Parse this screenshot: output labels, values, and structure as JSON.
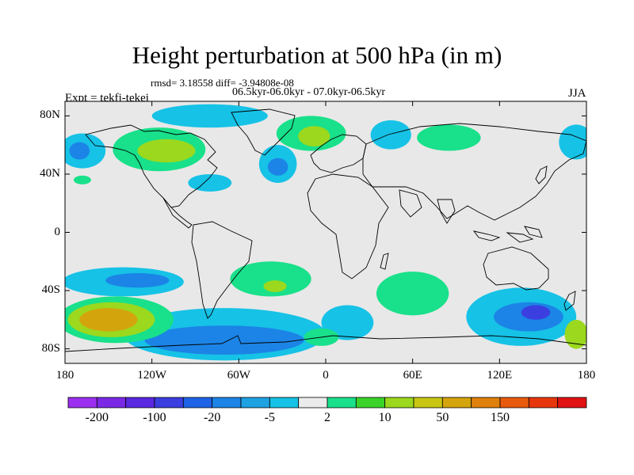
{
  "title": "Height perturbation at 500 hPa (in m)",
  "stats": "rmsd= 3.18558 diff= -3.94808e-08",
  "period": "06.5kyr-06.0kyr - 07.0kyr-06.5kyr",
  "experiment": "Expt = tekfi-tekei",
  "season": "JJA",
  "map": {
    "lat_ticks": [
      {
        "value": 80,
        "label": "80N"
      },
      {
        "value": 40,
        "label": "40N"
      },
      {
        "value": 0,
        "label": "0"
      },
      {
        "value": -40,
        "label": "40S"
      },
      {
        "value": -80,
        "label": "80S"
      }
    ],
    "lon_ticks": [
      {
        "value": -180,
        "label": "180"
      },
      {
        "value": -120,
        "label": "120W"
      },
      {
        "value": -60,
        "label": "60W"
      },
      {
        "value": 0,
        "label": "0"
      },
      {
        "value": 60,
        "label": "60E"
      },
      {
        "value": 120,
        "label": "120E"
      },
      {
        "value": 180,
        "label": "180"
      }
    ],
    "lon_range": [
      -180,
      180
    ],
    "lat_range": [
      -90,
      90
    ],
    "background_color": "#e8e8e8"
  },
  "colorbar": {
    "colors": [
      "#9b2ff0",
      "#7a28e6",
      "#5a28e0",
      "#3b3fe0",
      "#1e63e6",
      "#1c84e6",
      "#1ea2e2",
      "#16c2e6",
      "#ebebeb",
      "#19e08a",
      "#3ad32a",
      "#9bd81e",
      "#c8c612",
      "#d4a40c",
      "#e0800c",
      "#e85a0c",
      "#e8360c",
      "#e01212"
    ],
    "labels": [
      {
        "boundary": 1,
        "text": "-200"
      },
      {
        "boundary": 3,
        "text": "-100"
      },
      {
        "boundary": 5,
        "text": "-20"
      },
      {
        "boundary": 7,
        "text": "-5"
      },
      {
        "boundary": 9,
        "text": "2"
      },
      {
        "boundary": 11,
        "text": "10"
      },
      {
        "boundary": 13,
        "text": "50"
      },
      {
        "boundary": 15,
        "text": "150"
      }
    ]
  },
  "anomaly_regions": [
    {
      "name": "north-pacific-negative",
      "level": "-5",
      "lon": -168,
      "lat": 56,
      "rlon": 16,
      "rlat": 12
    },
    {
      "name": "north-pacific-core",
      "level": "-20",
      "lon": -170,
      "lat": 56,
      "rlon": 7,
      "rlat": 6
    },
    {
      "name": "north-america-positive",
      "level": "2",
      "lon": -115,
      "lat": 57,
      "rlon": 32,
      "rlat": 15
    },
    {
      "name": "north-america-core",
      "level": "10",
      "lon": -110,
      "lat": 56,
      "rlon": 20,
      "rlat": 8
    },
    {
      "name": "arctic-negative",
      "level": "-5",
      "lon": -80,
      "lat": 80,
      "rlon": 40,
      "rlat": 8
    },
    {
      "name": "north-atlantic-negative",
      "level": "-5",
      "lon": -33,
      "lat": 47,
      "rlon": 13,
      "rlat": 13
    },
    {
      "name": "north-atlantic-core",
      "level": "-20",
      "lon": -33,
      "lat": 45,
      "rlon": 7,
      "rlat": 6
    },
    {
      "name": "europe-positive",
      "level": "2",
      "lon": -10,
      "lat": 68,
      "rlon": 24,
      "rlat": 12
    },
    {
      "name": "europe-core",
      "level": "10",
      "lon": -8,
      "lat": 66,
      "rlon": 11,
      "rlat": 7
    },
    {
      "name": "eastern-us-negative",
      "level": "-5",
      "lon": -80,
      "lat": 34,
      "rlon": 15,
      "rlat": 6
    },
    {
      "name": "hawaii-positive",
      "level": "2",
      "lon": -168,
      "lat": 36,
      "rlon": 6,
      "rlat": 3
    },
    {
      "name": "siberia-negative",
      "level": "-5",
      "lon": 45,
      "lat": 67,
      "rlon": 14,
      "rlat": 10
    },
    {
      "name": "central-asia-positive",
      "level": "2",
      "lon": 85,
      "lat": 65,
      "rlon": 22,
      "rlat": 9
    },
    {
      "name": "far-east-negative",
      "level": "-5",
      "lon": 173,
      "lat": 62,
      "rlon": 12,
      "rlat": 12
    },
    {
      "name": "southeast-pacific-negative",
      "level": "-5",
      "lon": -140,
      "lat": -34,
      "rlon": 42,
      "rlat": 10
    },
    {
      "name": "southeast-pacific-core",
      "level": "-20",
      "lon": -130,
      "lat": -33,
      "rlon": 22,
      "rlat": 5
    },
    {
      "name": "south-atlantic-positive",
      "level": "2",
      "lon": -38,
      "lat": -32,
      "rlon": 28,
      "rlat": 12
    },
    {
      "name": "south-atlantic-core",
      "level": "10",
      "lon": -35,
      "lat": -37,
      "rlon": 8,
      "rlat": 4
    },
    {
      "name": "southern-ocean-negative",
      "level": "-5",
      "lon": -70,
      "lat": -70,
      "rlon": 70,
      "rlat": 18
    },
    {
      "name": "southern-ocean-core",
      "level": "-20",
      "lon": -70,
      "lat": -74,
      "rlon": 55,
      "rlat": 10
    },
    {
      "name": "south-pacific-positive",
      "level": "2",
      "lon": -145,
      "lat": -60,
      "rlon": 40,
      "rlat": 16
    },
    {
      "name": "south-pacific-core",
      "level": "10",
      "lon": -148,
      "lat": -60,
      "rlon": 30,
      "rlat": 12
    },
    {
      "name": "south-pacific-max",
      "level": "50",
      "lon": -150,
      "lat": -60,
      "rlon": 20,
      "rlat": 8
    },
    {
      "name": "south-atlantic-east-negative",
      "level": "-5",
      "lon": 15,
      "lat": -62,
      "rlon": 18,
      "rlat": 12
    },
    {
      "name": "antarctic-positive",
      "level": "2",
      "lon": -3,
      "lat": -72,
      "rlon": 12,
      "rlat": 6
    },
    {
      "name": "indian-ocean-positive",
      "level": "2",
      "lon": 60,
      "lat": -42,
      "rlon": 25,
      "rlat": 15
    },
    {
      "name": "australia-south-negative",
      "level": "-5",
      "lon": 135,
      "lat": -58,
      "rlon": 38,
      "rlat": 20
    },
    {
      "name": "australia-south-core",
      "level": "-20",
      "lon": 140,
      "lat": -58,
      "rlon": 24,
      "rlat": 10
    },
    {
      "name": "australia-south-max",
      "level": "-100",
      "lon": 145,
      "lat": -55,
      "rlon": 10,
      "rlat": 5
    },
    {
      "name": "ross-sea-positive",
      "level": "10",
      "lon": 173,
      "lat": -70,
      "rlon": 8,
      "rlat": 10
    }
  ]
}
